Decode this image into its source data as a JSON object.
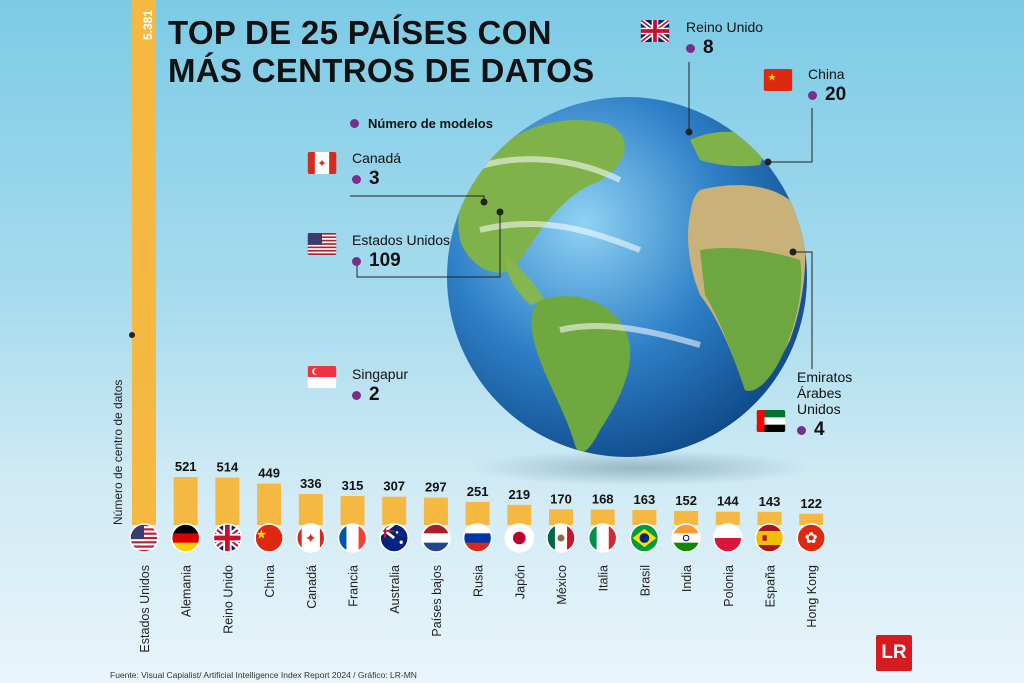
{
  "title_line1": "TOP DE 25 PAÍSES CON",
  "title_line2": "MÁS CENTROS DE DATOS",
  "legend_label": "Número de modelos",
  "y_axis_label": "Número de centro de datos",
  "source": "Fuente: Visual Capialist/ Artificial Intelligence Index Report 2024 / Gráfico: LR-MN",
  "logo_text": "LR",
  "colors": {
    "bar": "#f5b942",
    "dot": "#7b2d8e",
    "logo": "#d71920"
  },
  "callouts": [
    {
      "name": "Reino Unido",
      "value": "8",
      "flag": "uk-flag"
    },
    {
      "name": "China",
      "value": "20",
      "flag": "china-flag"
    },
    {
      "name": "Canadá",
      "value": "3",
      "flag": "canada-flag"
    },
    {
      "name": "Estados Unidos",
      "value": "109",
      "flag": "usa-flag"
    },
    {
      "name": "Singapur",
      "value": "2",
      "flag": "singapore-flag"
    },
    {
      "name": "Emiratos Árabes Unidos",
      "name_lines": [
        "Emiratos",
        "Árabes",
        "Unidos"
      ],
      "value": "4",
      "flag": "uae-flag"
    }
  ],
  "chart_data": {
    "type": "bar",
    "ylabel": "Número de centro de datos",
    "categories": [
      "Estados Unidos",
      "Alemania",
      "Reino Unido",
      "China",
      "Canadá",
      "Francia",
      "Australia",
      "Países bajos",
      "Rusia",
      "Japón",
      "México",
      "Italia",
      "Brasil",
      "India",
      "Polonia",
      "España",
      "Hong Kong"
    ],
    "values": [
      5381,
      521,
      514,
      449,
      336,
      315,
      307,
      297,
      251,
      219,
      170,
      168,
      163,
      152,
      144,
      143,
      122
    ],
    "value_labels": [
      "5.381",
      "521",
      "514",
      "449",
      "336",
      "315",
      "307",
      "297",
      "251",
      "219",
      "170",
      "168",
      "163",
      "152",
      "144",
      "143",
      "122"
    ],
    "flags": [
      "usa-flag",
      "germany-flag",
      "uk-flag",
      "china-flag",
      "canada-flag",
      "france-flag",
      "australia-flag",
      "netherlands-flag",
      "russia-flag",
      "japan-flag",
      "mexico-flag",
      "italy-flag",
      "brazil-flag",
      "india-flag",
      "poland-flag",
      "spain-flag",
      "hongkong-flag"
    ]
  }
}
